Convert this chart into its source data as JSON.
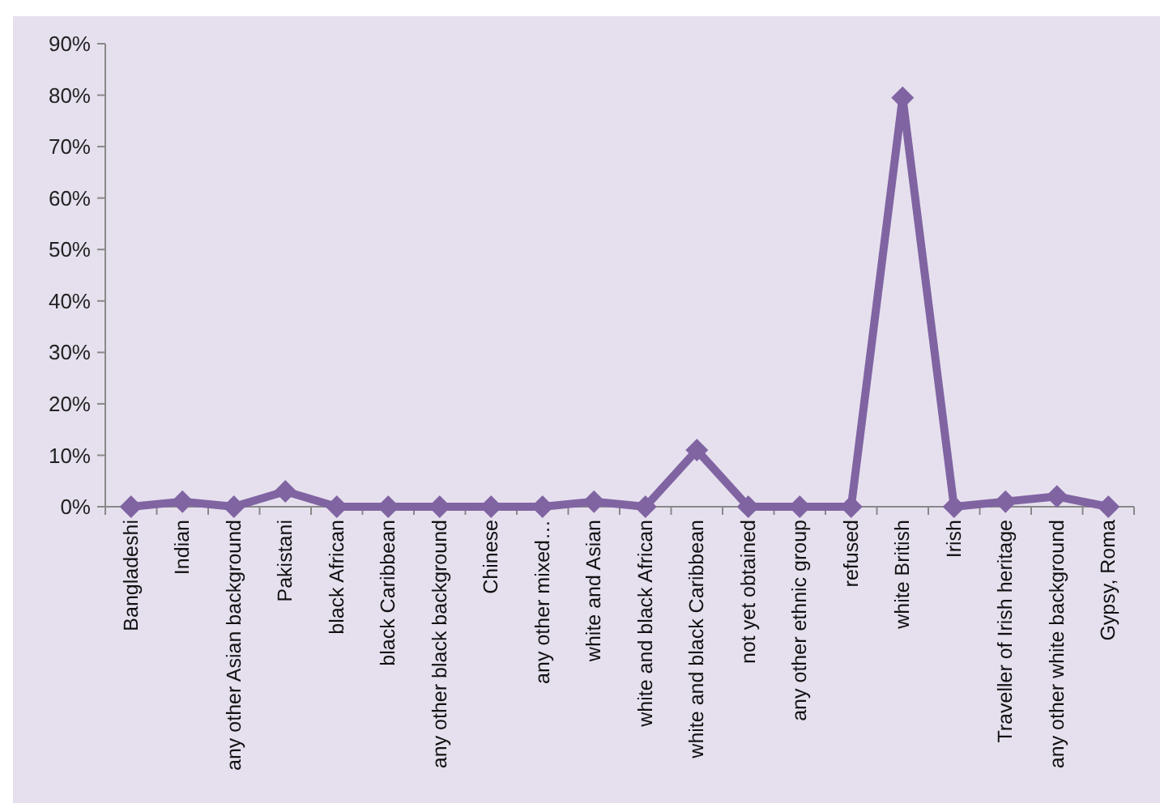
{
  "chart_data": {
    "type": "line",
    "categories": [
      "Bangladeshi",
      "Indian",
      "any other Asian background",
      "Pakistani",
      "black African",
      "black Caribbean",
      "any other black background",
      "Chinese",
      "any other mixed…",
      "white and Asian",
      "white and black African",
      "white and black Caribbean",
      "not yet obtained",
      "any other ethnic group",
      "refused",
      "white British",
      "Irish",
      "Traveller of Irish heritage",
      "any other white background",
      "Gypsy, Roma"
    ],
    "series": [
      {
        "color": "#8064a2",
        "values": [
          0,
          1,
          0,
          3,
          0,
          0,
          0,
          0,
          0,
          1,
          0,
          11,
          0,
          0,
          0,
          79.5,
          0,
          1,
          2,
          0
        ]
      }
    ],
    "ylim": [
      0,
      90
    ],
    "yticks": [
      {
        "value": 0,
        "label": "0%"
      },
      {
        "value": 10,
        "label": "10%"
      },
      {
        "value": 20,
        "label": "20%"
      },
      {
        "value": 30,
        "label": "30%"
      },
      {
        "value": 40,
        "label": "40%"
      },
      {
        "value": 50,
        "label": "50%"
      },
      {
        "value": 60,
        "label": "60%"
      },
      {
        "value": 70,
        "label": "70%"
      },
      {
        "value": 80,
        "label": "80%"
      },
      {
        "value": 90,
        "label": "90%"
      }
    ],
    "grid": false,
    "marker": "diamond",
    "line_style": "solid"
  }
}
